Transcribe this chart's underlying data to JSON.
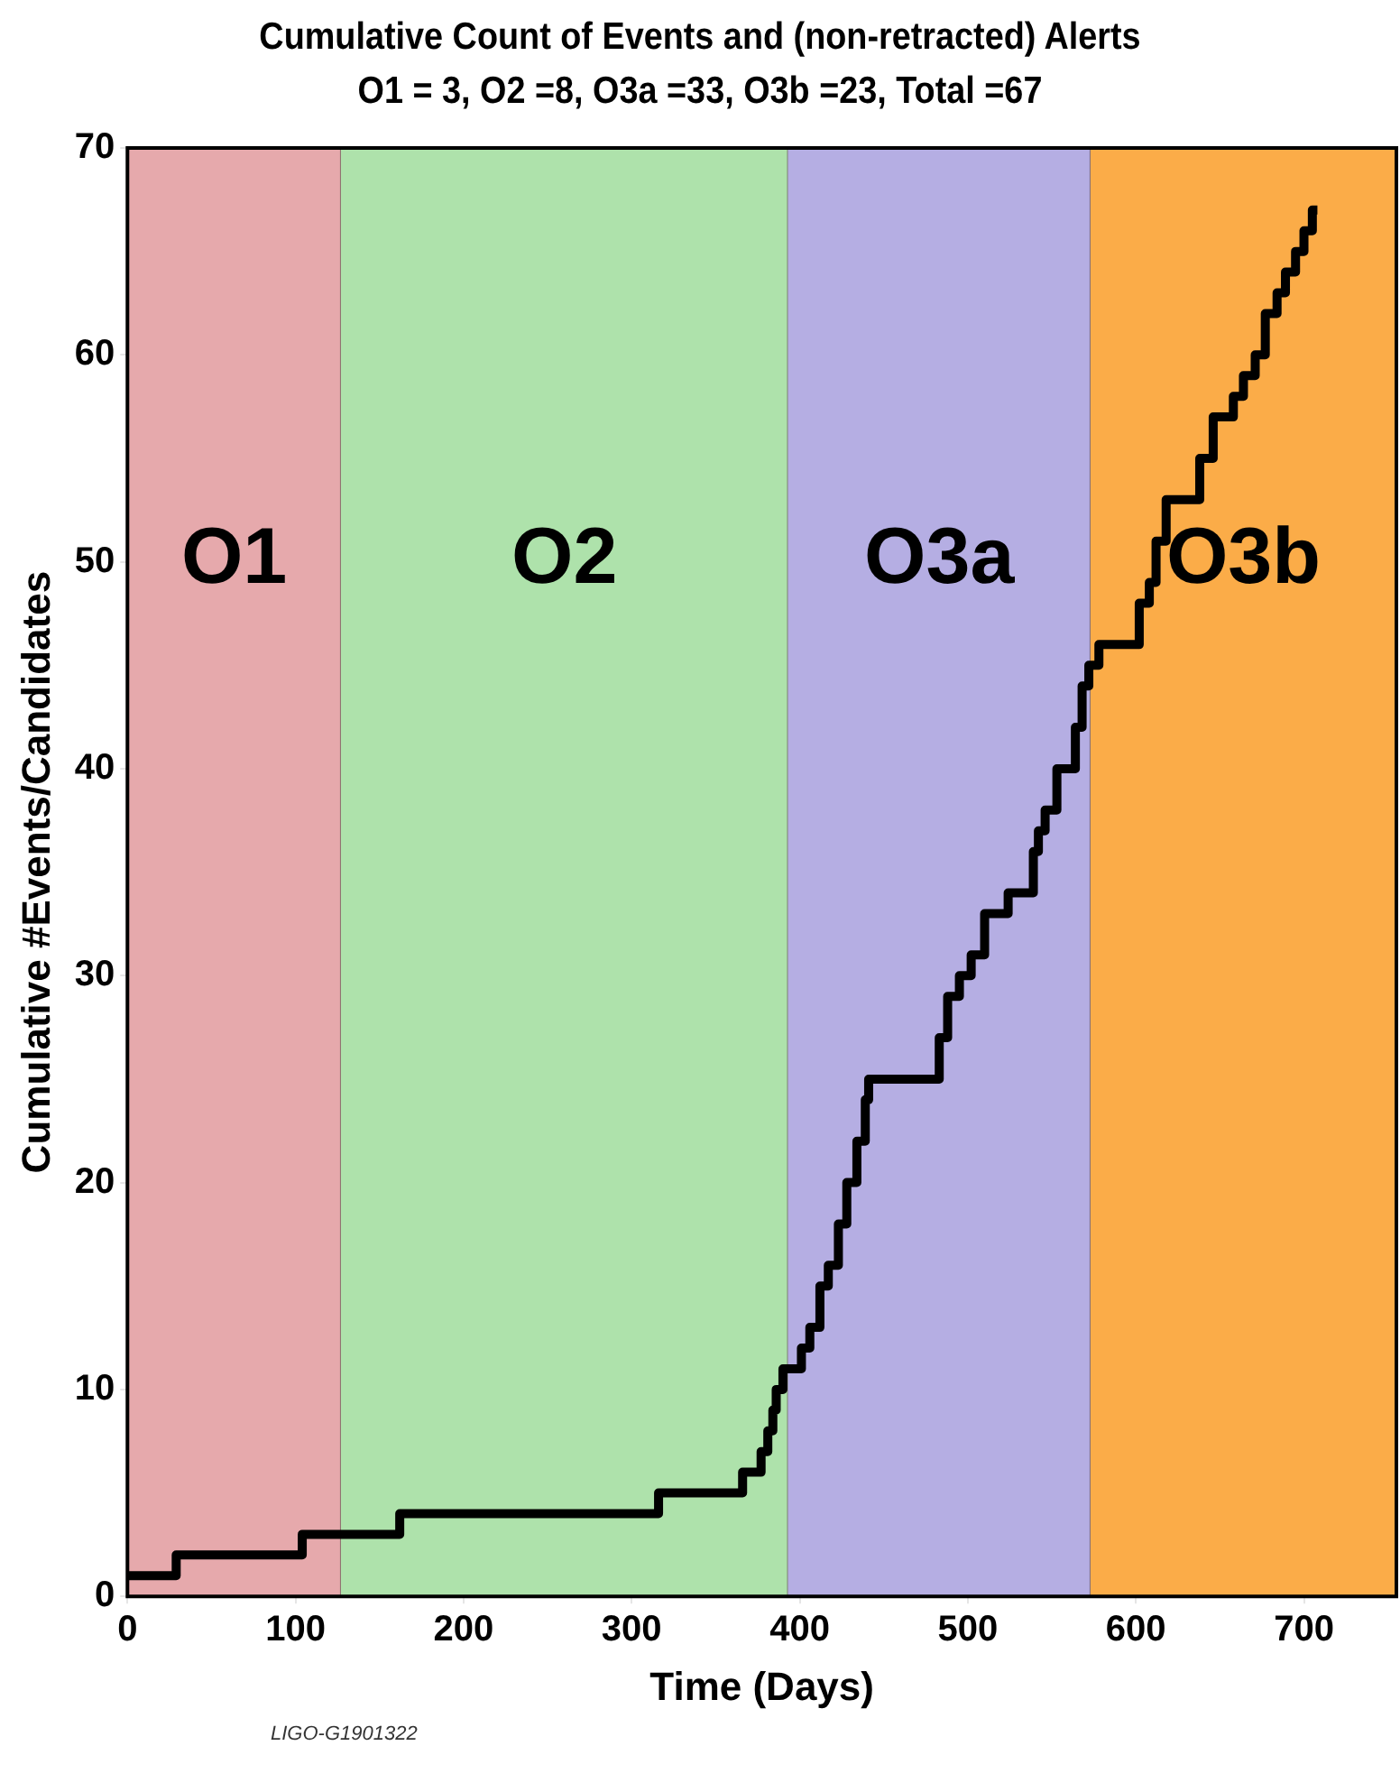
{
  "chart_data": {
    "type": "step",
    "title": "Cumulative Count of Events and (non-retracted) Alerts",
    "subtitle": "O1 = 3, O2 =8, O3a =33, O3b =23, Total =67",
    "xlabel": "Time (Days)",
    "ylabel": "Cumulative #Events/Candidates",
    "xlim": [
      0,
      755
    ],
    "xticks": [
      0,
      100,
      200,
      300,
      400,
      500,
      600,
      700
    ],
    "ylim": [
      0,
      70
    ],
    "yticks": [
      0,
      10,
      20,
      30,
      40,
      50,
      60,
      70
    ],
    "legend": false,
    "marker": "none",
    "line_style": "solid",
    "series": [
      {
        "color": "#000000",
        "x": [
          0,
          29,
          104,
          162,
          316,
          366,
          377,
          381,
          384,
          386,
          390,
          401,
          406,
          412,
          417,
          423,
          428,
          434,
          439,
          441,
          483,
          488,
          495,
          502,
          510,
          524,
          539,
          542,
          546,
          553,
          564,
          568,
          572,
          578,
          602,
          608,
          612,
          618,
          638,
          646,
          658,
          664,
          671,
          677,
          684,
          689,
          695,
          700,
          705,
          708
        ],
        "values": [
          1,
          2,
          3,
          4,
          5,
          6,
          7,
          8,
          9,
          10,
          11,
          12,
          13,
          15,
          16,
          18,
          20,
          22,
          24,
          25,
          27,
          29,
          30,
          31,
          33,
          34,
          36,
          37,
          38,
          40,
          42,
          44,
          45,
          46,
          48,
          49,
          51,
          53,
          55,
          57,
          58,
          59,
          60,
          62,
          63,
          64,
          65,
          66,
          67,
          67
        ]
      }
    ],
    "bands": [
      {
        "axis": "x",
        "from": 0,
        "to": 127,
        "label": "O1",
        "color": "#e6a9ac"
      },
      {
        "axis": "x",
        "from": 127,
        "to": 393,
        "label": "O2",
        "color": "#aee2ab"
      },
      {
        "axis": "x",
        "from": 393,
        "to": 573,
        "label": "O3a",
        "color": "#b5aee3"
      },
      {
        "axis": "x",
        "from": 573,
        "to": 755,
        "label": "O3b",
        "color": "#fbac48"
      }
    ],
    "annotations": [
      "LIGO-G1901322"
    ]
  }
}
